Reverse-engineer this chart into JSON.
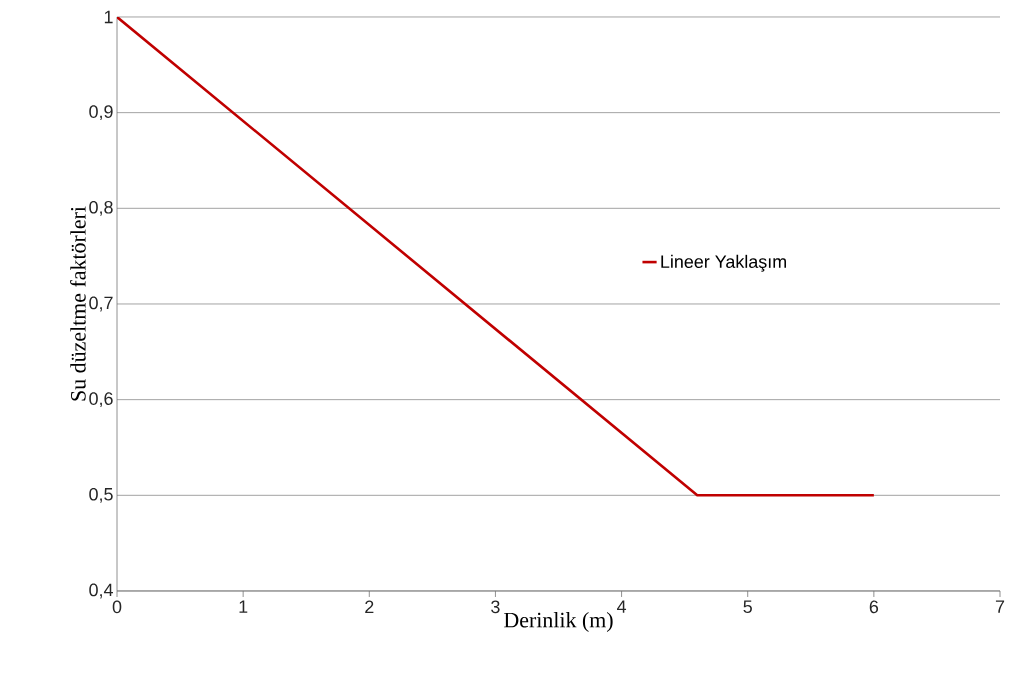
{
  "chart_data": {
    "type": "line",
    "xlabel": "Derinlik (m)",
    "ylabel": "Su düzeltme faktörleri",
    "x": [
      0,
      4.6,
      6
    ],
    "series": [
      {
        "name": "Lineer Yaklaşım",
        "color": "#c00000",
        "values": [
          1,
          0.5,
          0.5
        ]
      }
    ],
    "xlim": [
      0,
      7
    ],
    "xticks": [
      0,
      1,
      2,
      3,
      4,
      5,
      6,
      7
    ],
    "ylim": [
      0.4,
      1
    ],
    "yticks": [
      {
        "value": 0.4,
        "label": "0,4"
      },
      {
        "value": 0.5,
        "label": "0,5"
      },
      {
        "value": 0.6,
        "label": "0,6"
      },
      {
        "value": 0.7,
        "label": "0,7"
      },
      {
        "value": 0.8,
        "label": "0,8"
      },
      {
        "value": 0.9,
        "label": "0,9"
      },
      {
        "value": 1,
        "label": "1"
      }
    ],
    "grid": "y",
    "legend": "right",
    "marker": "none",
    "line_style": "solid"
  }
}
